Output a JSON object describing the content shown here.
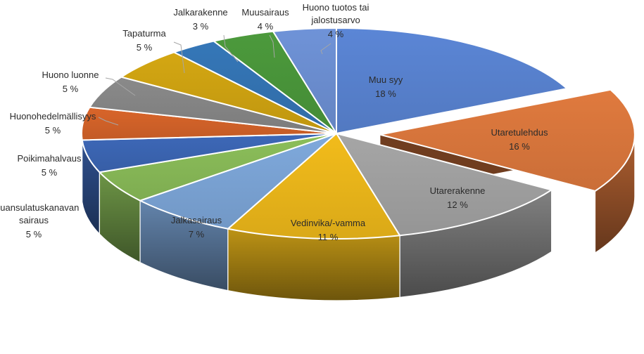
{
  "chart_data": {
    "type": "pie",
    "title": "",
    "legend": "none",
    "labels_format": "category and percent",
    "slices": [
      {
        "label": "Muu syy",
        "percent_label": "18 %",
        "value": 18,
        "color": "#5b86d6",
        "exploded": false
      },
      {
        "label": "Utaretulehdus",
        "percent_label": "16 %",
        "value": 16,
        "color": "#e07a3e",
        "exploded": true
      },
      {
        "label": "Utarerakenne",
        "percent_label": "12 %",
        "value": 12,
        "color": "#a6a6a6",
        "exploded": false
      },
      {
        "label": "Vedinvika/-vamma",
        "percent_label": "11 %",
        "value": 11,
        "color": "#f2bc1b",
        "exploded": false
      },
      {
        "label": "Jalkasairaus",
        "percent_label": "7 %",
        "value": 7,
        "color": "#7fa9dc",
        "exploded": false
      },
      {
        "label": "Ruuansulatuskanavan sairaus",
        "percent_label": "5 %",
        "value": 5,
        "color": "#8cbf5a",
        "exploded": false
      },
      {
        "label": "Poikimahalvaus",
        "percent_label": "5 %",
        "value": 5,
        "color": "#3d68b8",
        "exploded": false
      },
      {
        "label": "Huonohedelmällisyys",
        "percent_label": "5 %",
        "value": 5,
        "color": "#d9652a",
        "exploded": false
      },
      {
        "label": "Huono luonne",
        "percent_label": "5 %",
        "value": 5,
        "color": "#8a8a8a",
        "exploded": false
      },
      {
        "label": "Tapaturma",
        "percent_label": "5 %",
        "value": 5,
        "color": "#d4a712",
        "exploded": false
      },
      {
        "label": "Jalkarakenne",
        "percent_label": "3 %",
        "value": 3,
        "color": "#3577b8",
        "exploded": false
      },
      {
        "label": "Muusairaus",
        "percent_label": "4 %",
        "value": 4,
        "color": "#4c9a3c",
        "exploded": false
      },
      {
        "label": "Huono tuotos tai jalostusarvo",
        "percent_label": "4 %",
        "value": 4,
        "color": "#6f93d8",
        "exploded": false
      }
    ]
  }
}
